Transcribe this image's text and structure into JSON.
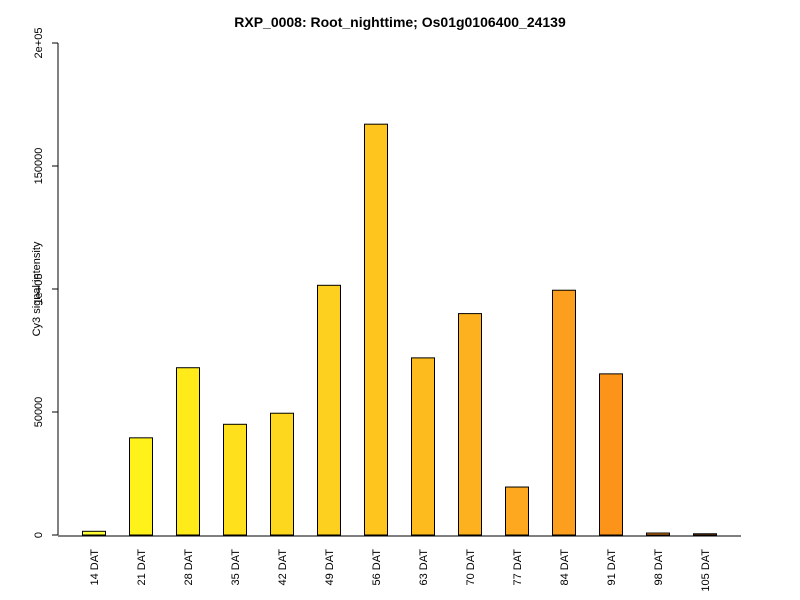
{
  "chart_data": {
    "type": "bar",
    "title": "RXP_0008: Root_nighttime; Os01g0106400_24139",
    "xlabel": "",
    "ylabel": "Cy3 signal intensity",
    "ylim": [
      0,
      200000
    ],
    "yticks": [
      0,
      50000,
      100000,
      150000,
      200000
    ],
    "ytick_labels": [
      "0",
      "50000",
      "1e+05",
      "150000",
      "2e+05"
    ],
    "categories": [
      "14 DAT",
      "21 DAT",
      "28 DAT",
      "35 DAT",
      "42 DAT",
      "49 DAT",
      "56 DAT",
      "63 DAT",
      "70 DAT",
      "77 DAT",
      "84 DAT",
      "91 DAT",
      "98 DAT",
      "105 DAT"
    ],
    "values": [
      1500,
      39500,
      68000,
      45000,
      49500,
      101500,
      167000,
      72000,
      90000,
      19500,
      99500,
      65500,
      800,
      500
    ],
    "colors": [
      "#FFFF33",
      "#FFF21A",
      "#FFEA1A",
      "#FFE01C",
      "#FDD61E",
      "#FDCF1E",
      "#FDC51E",
      "#FDBB1E",
      "#FDB11E",
      "#FDA81E",
      "#FC9F1E",
      "#FC941A",
      "#FC8A14",
      "#FC800E"
    ],
    "grid": false,
    "legend": "none"
  }
}
